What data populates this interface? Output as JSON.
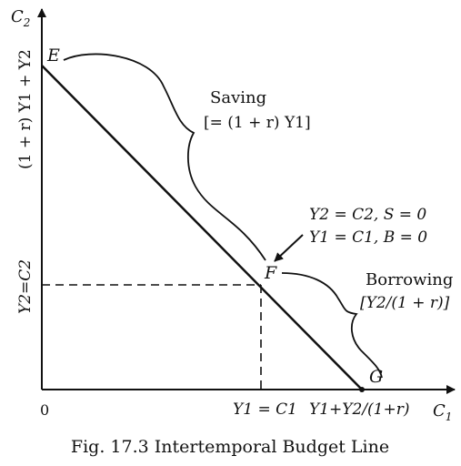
{
  "figure": {
    "caption": "Fig. 17.3 Intertemporal Budget Line",
    "axes": {
      "y_axis_label": "C",
      "y_axis_sub": "2",
      "x_axis_label": "C",
      "x_axis_sub": "1",
      "origin_label": "0"
    },
    "y_ticks": {
      "top": "(1 + r) Y1 + Y2",
      "mid": "Y2=C2"
    },
    "x_ticks": {
      "mid": "Y1 = C1",
      "right": "Y1+Y2/(1+r)"
    },
    "points": {
      "e": "E",
      "f": "F",
      "g": "G"
    },
    "annotations": {
      "saving_title": "Saving",
      "saving_formula": "[= (1 + r) Y1]",
      "borrowing_title": "Borrowing",
      "borrowing_formula": "[Y2/(1 + r)]",
      "f_note_line1": "Y2 = C2, S = 0",
      "f_note_line2": "Y1 = C1, B = 0"
    }
  }
}
